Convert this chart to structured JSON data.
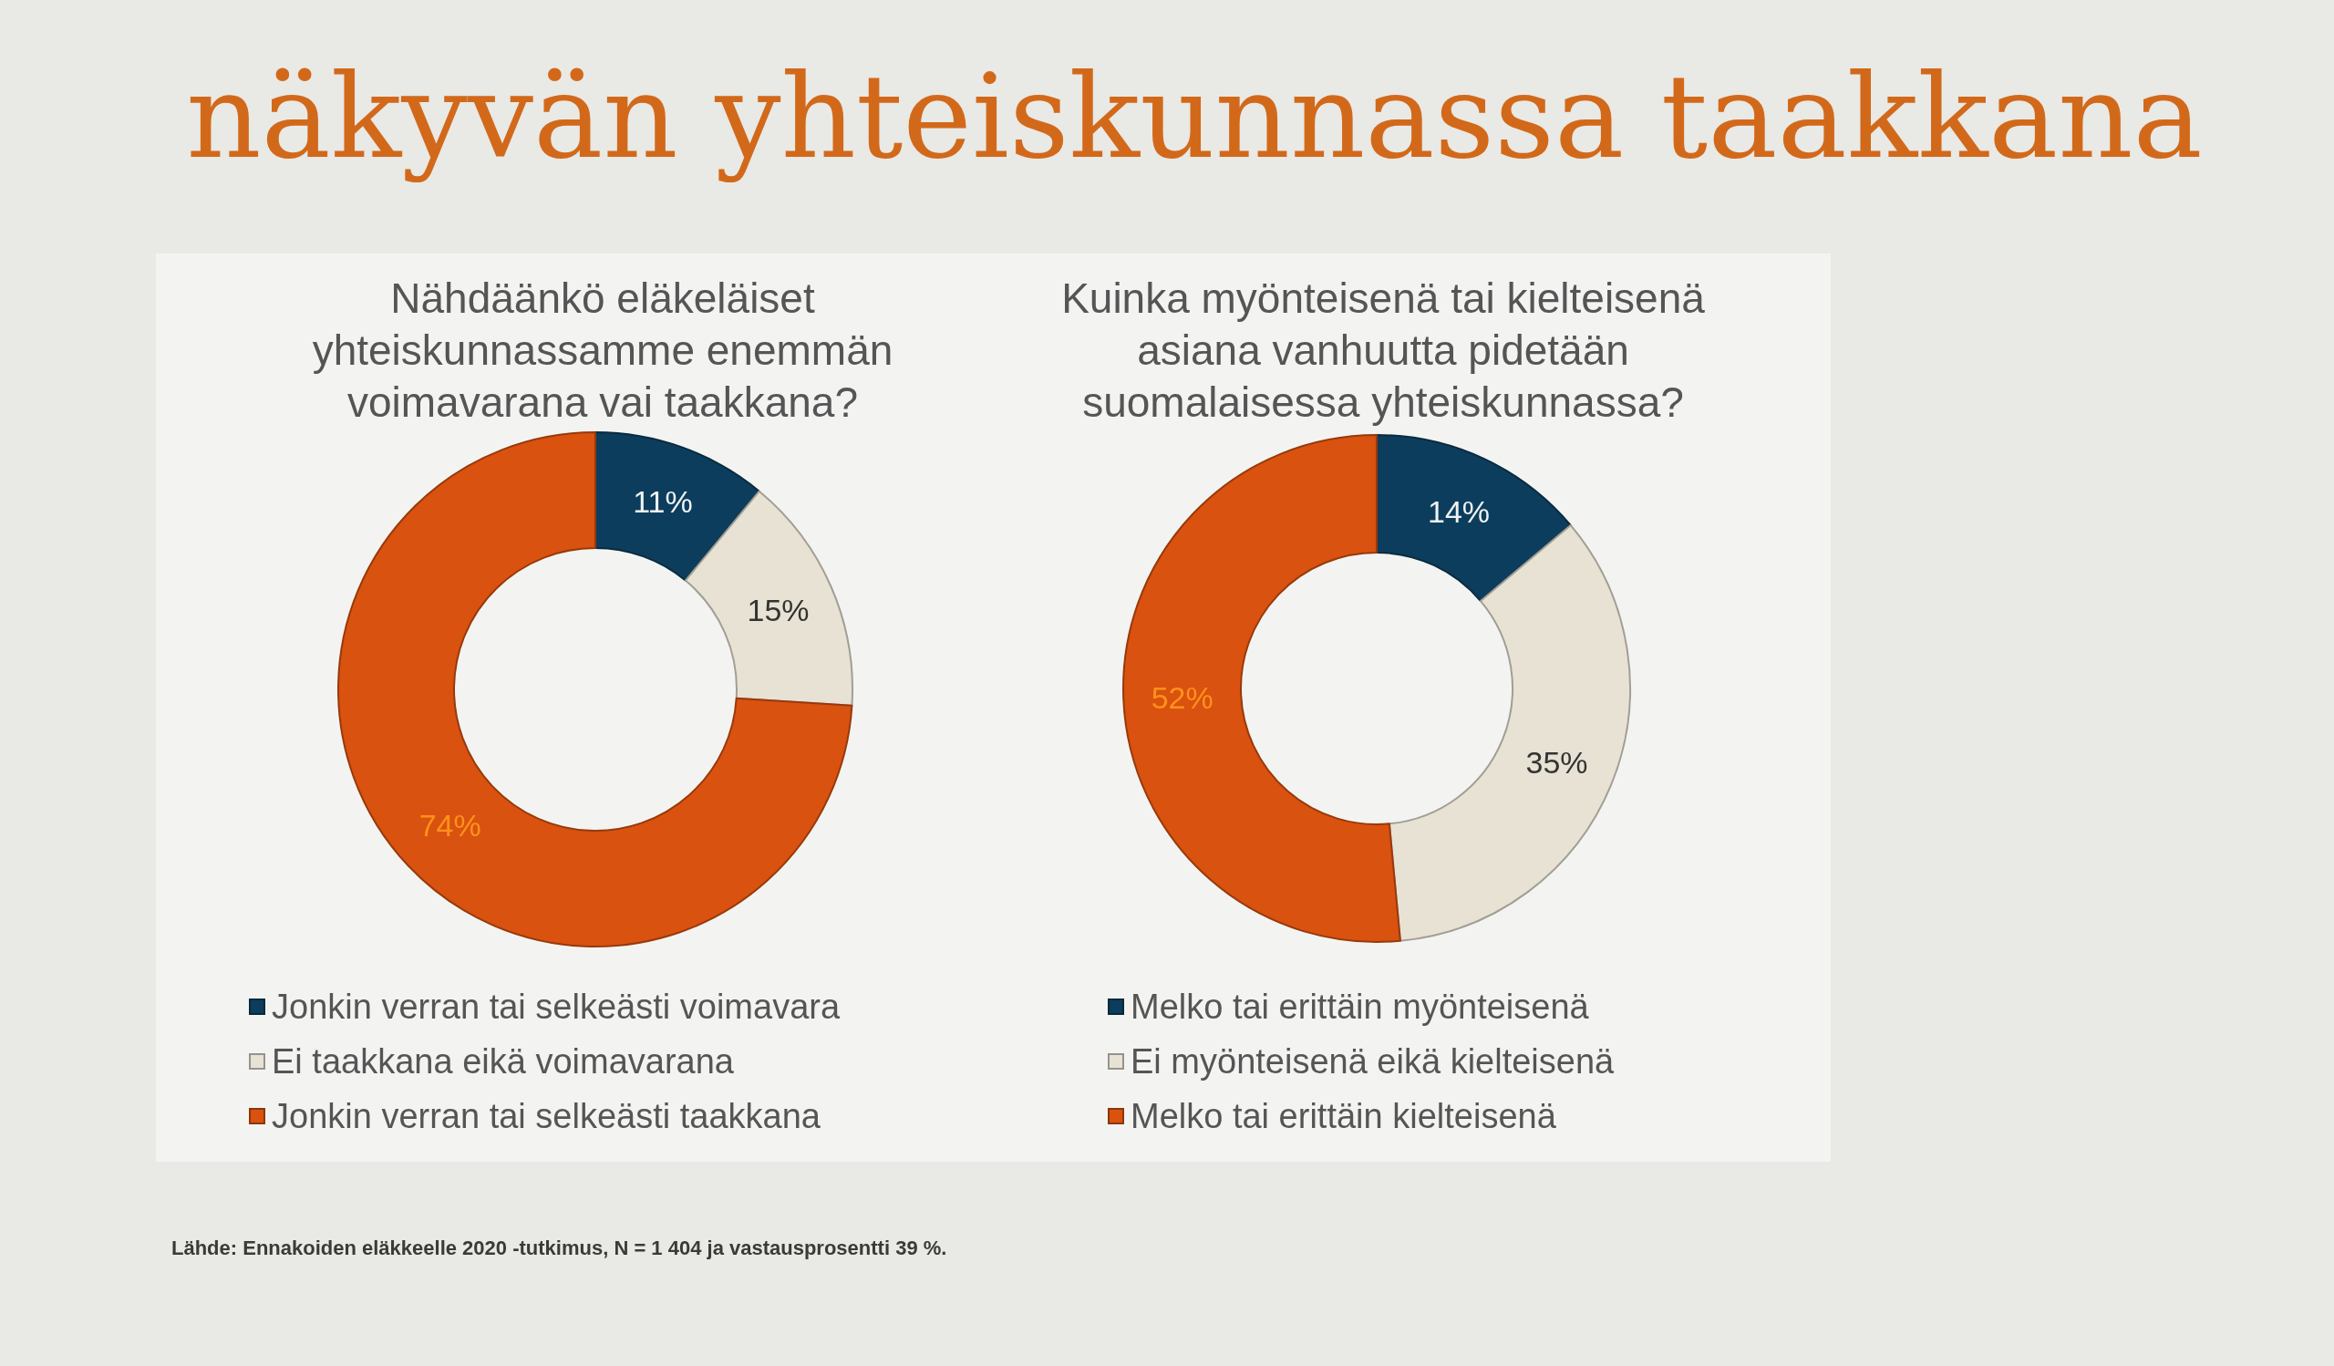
{
  "chart_data": [
    {
      "type": "other",
      "title": "näkyvän yhteiskunnassa taakkana",
      "annotations": [
        "Lähde: Ennakoiden eläkkeelle 2020 -tutkimus, N = 1 404 ja vastausprosentti 39 %."
      ]
    },
    {
      "type": "donut",
      "title": "Nähdäänkö eläkeläiset yhteiskunnassamme enemmän voimavarana vai taakkana?",
      "categories": [
        "Jonkin verran tai selkeästi voimavara",
        "Ei taakkana eikä voimavarana",
        "Jonkin verran tai selkeästi taakkana"
      ],
      "values": [
        11,
        15,
        74
      ],
      "colors": [
        "#0d3d5c",
        "#e7e2d4",
        "#d9520f"
      ],
      "value_labels": [
        "11%",
        "15%",
        "74%"
      ],
      "legend": "bottom"
    },
    {
      "type": "donut",
      "title": "Kuinka myönteisenä tai kielteisenä asiana vanhuutta pidetään suomalaisessa yhteiskunnassa?",
      "categories": [
        "Melko tai erittäin myönteisenä",
        "Ei myönteisenä eikä kielteisenä",
        "Melko tai erittäin kielteisenä"
      ],
      "values": [
        14,
        35,
        52
      ],
      "colors": [
        "#0d3d5c",
        "#e7e2d4",
        "#d9520f"
      ],
      "value_labels": [
        "14%",
        "35%",
        "52%"
      ],
      "legend": "bottom"
    }
  ]
}
